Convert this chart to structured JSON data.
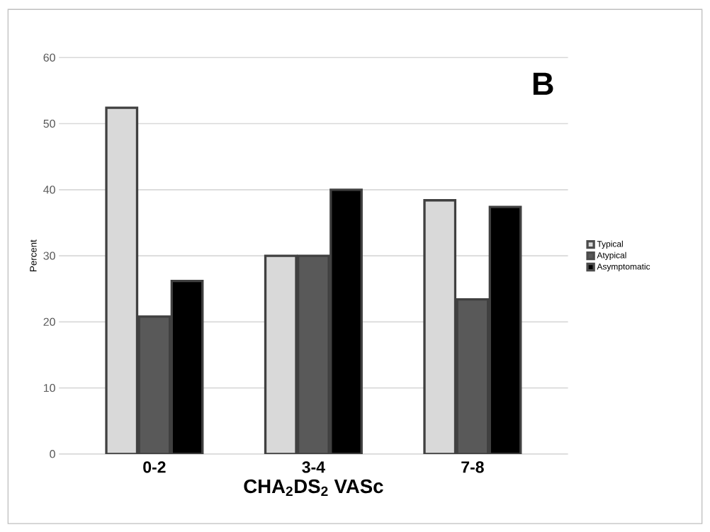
{
  "chart_data": {
    "type": "bar",
    "xlabel": "CHA$_{2}$DS$_{2}$ VASc",
    "ylabel": "Percent",
    "categories": [
      "0-2",
      "3-4",
      "7-8"
    ],
    "series": [
      {
        "name": "Typical",
        "color": "#d9d9d9",
        "values": [
          52.4,
          30,
          38.4
        ]
      },
      {
        "name": "Atypical",
        "color": "#595959",
        "values": [
          20.8,
          30,
          23.4
        ]
      },
      {
        "name": "Asymptomatic",
        "color": "#000000",
        "values": [
          26.2,
          40,
          37.4
        ]
      }
    ],
    "ylim": [
      0,
      60
    ],
    "yticks": [
      0,
      10,
      20,
      30,
      40,
      50,
      60
    ],
    "grid": "y",
    "legend": "right",
    "annotations": [
      "B"
    ]
  }
}
